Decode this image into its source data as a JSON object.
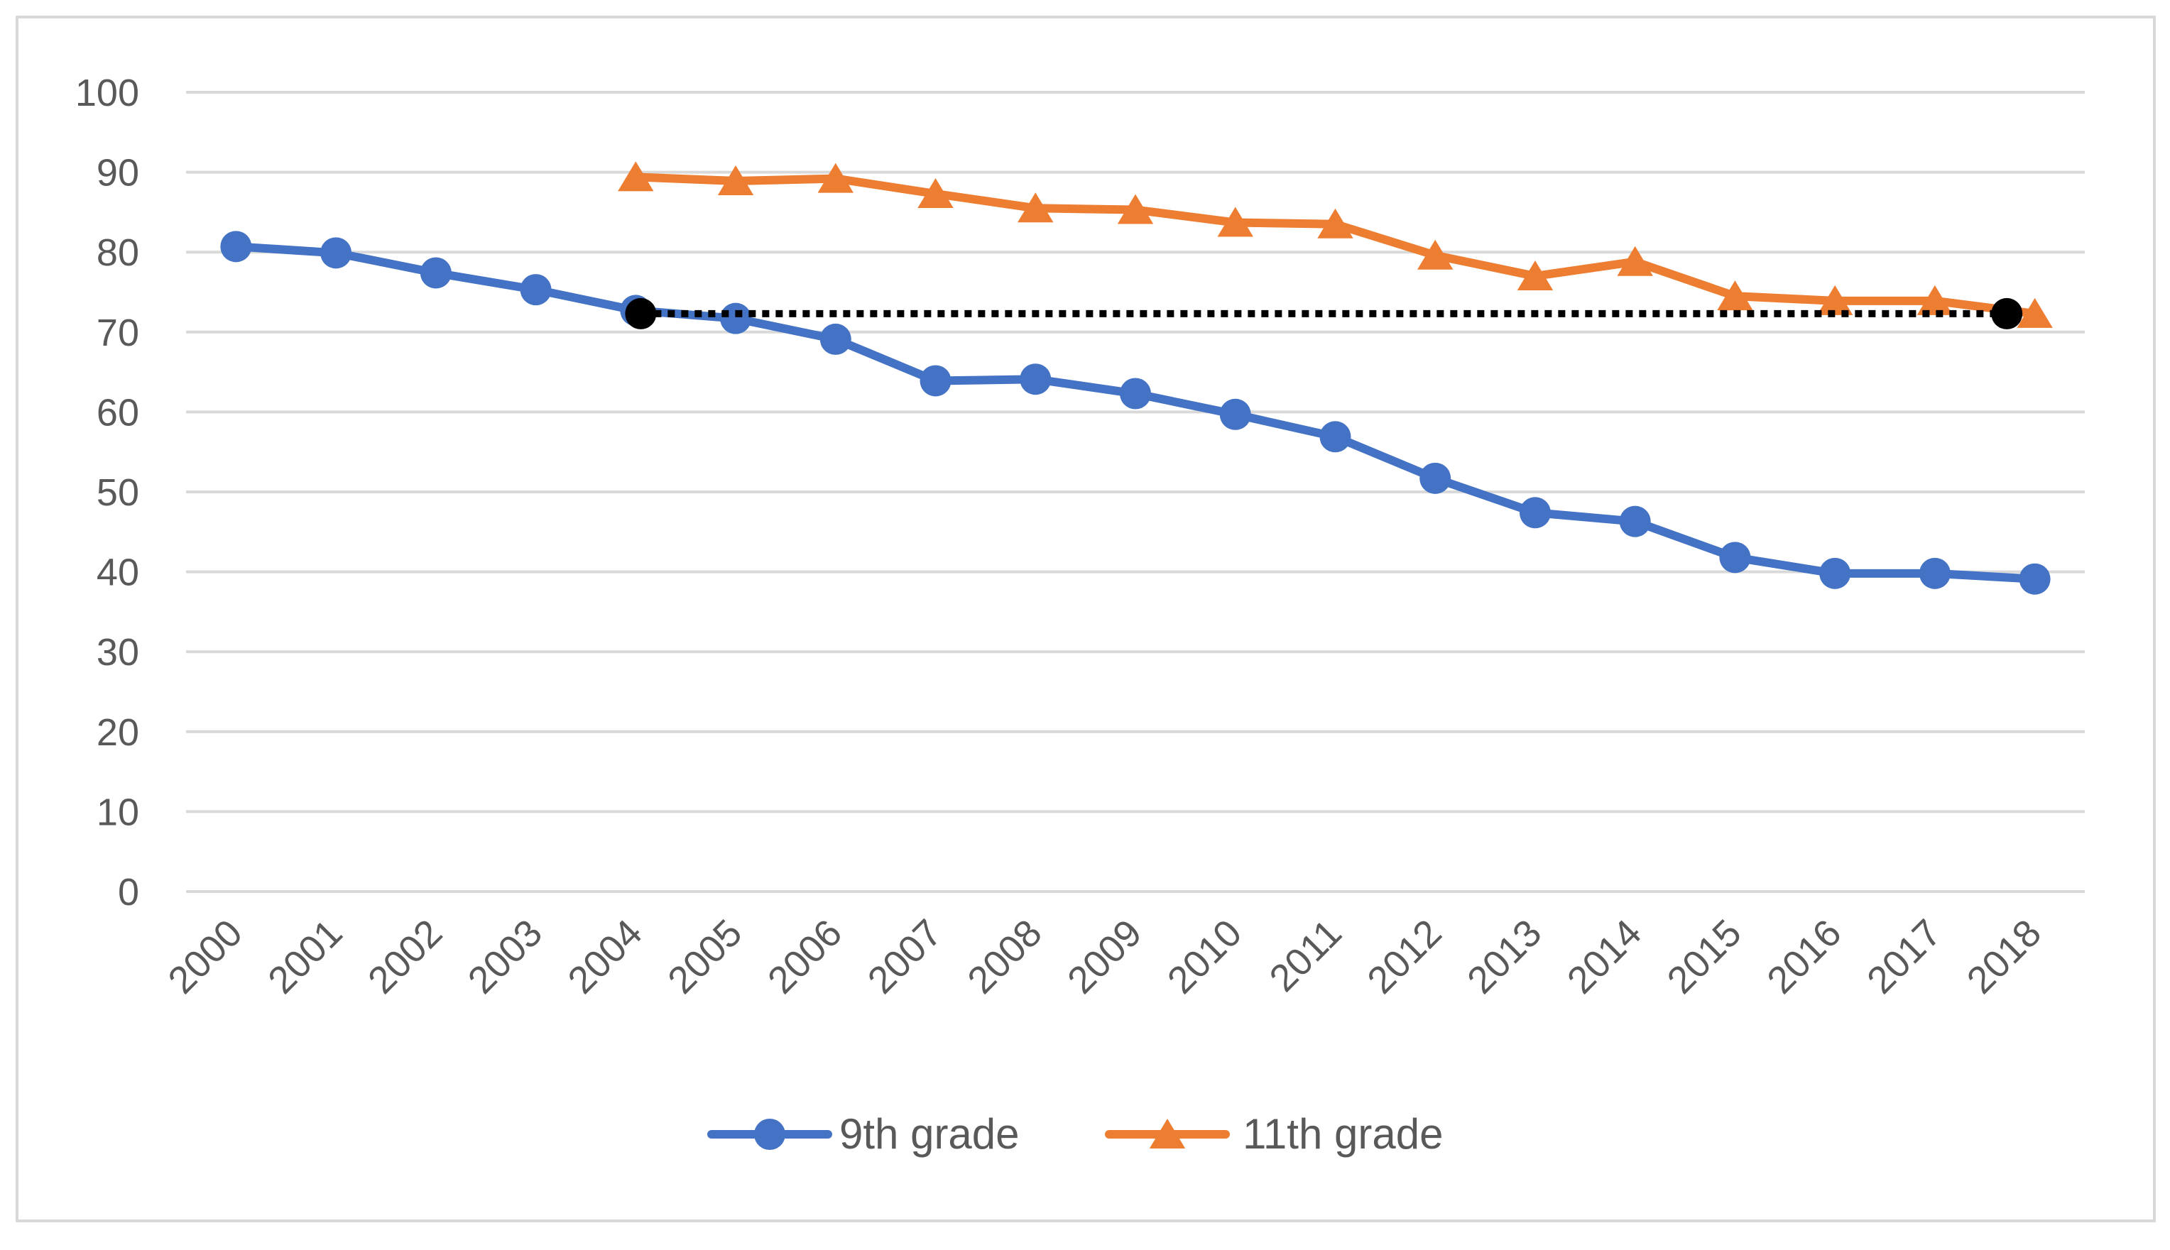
{
  "chart_data": {
    "type": "line",
    "title": "",
    "xlabel": "",
    "ylabel": "",
    "ylim": [
      0,
      100
    ],
    "ytick_step": 10,
    "grid": true,
    "legend_position": "bottom",
    "categories": [
      "2000",
      "2001",
      "2002",
      "2003",
      "2004",
      "2005",
      "2006",
      "2007",
      "2008",
      "2009",
      "2010",
      "2011",
      "2012",
      "2013",
      "2014",
      "2015",
      "2016",
      "2017",
      "2018"
    ],
    "series": [
      {
        "name": "9th grade",
        "marker": "circle",
        "color": "#4472C4",
        "values": [
          80.7,
          79.9,
          77.4,
          75.3,
          72.7,
          71.7,
          69.1,
          63.9,
          64.1,
          62.3,
          59.7,
          56.9,
          51.7,
          47.4,
          46.3,
          41.8,
          39.8,
          39.8,
          39.1
        ]
      },
      {
        "name": "11th grade",
        "marker": "triangle",
        "color": "#ED7D31",
        "values": [
          null,
          null,
          null,
          null,
          89.4,
          88.9,
          89.2,
          87.3,
          85.5,
          85.3,
          83.7,
          83.5,
          79.6,
          77.0,
          78.8,
          74.5,
          73.9,
          73.9,
          72.3
        ]
      }
    ],
    "reference_line": {
      "style": "dotted",
      "color": "#000000",
      "start": {
        "x": 4.55,
        "y": 72.3
      },
      "end": {
        "x": 18.22,
        "y": 72.3
      }
    }
  }
}
